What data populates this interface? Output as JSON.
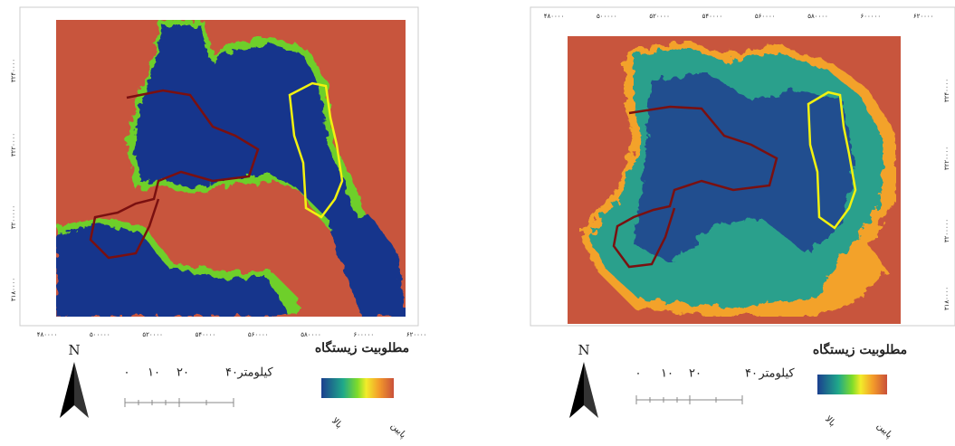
{
  "maps": [
    {
      "x_ticks": [
        "۴۸۰۰۰۰",
        "۵۰۰۰۰۰",
        "۵۲۰۰۰۰",
        "۵۴۰۰۰۰",
        "۵۶۰۰۰۰",
        "۵۸۰۰۰۰",
        "۶۰۰۰۰۰",
        "۶۲۰۰۰۰"
      ],
      "y_ticks": [
        "۳۲۴۰۰۰۰",
        "۳۲۲۰۰۰۰",
        "۳۲۰۰۰۰۰",
        "۳۱۸۰۰۰۰"
      ],
      "north": "N",
      "scale": {
        "labels": [
          "۰",
          "۱۰",
          "۲۰",
          "۴۰"
        ],
        "unit": "کیلومتر"
      },
      "legend": {
        "title": "مطلوبیت زیستگاه",
        "high": "بالا",
        "low": "پایین"
      }
    },
    {
      "x_ticks": [
        "۴۸۰۰۰۰",
        "۵۰۰۰۰۰",
        "۵۲۰۰۰۰",
        "۵۴۰۰۰۰",
        "۵۶۰۰۰۰",
        "۵۸۰۰۰۰",
        "۶۰۰۰۰۰",
        "۶۲۰۰۰۰"
      ],
      "y_ticks": [
        "۳۲۴۰۰۰۰",
        "۳۲۲۰۰۰۰",
        "۳۲۰۰۰۰۰",
        "۳۱۸۰۰۰۰"
      ],
      "north": "N",
      "scale": {
        "labels": [
          "۰",
          "۱۰",
          "۲۰",
          "۴۰"
        ],
        "unit": "کیلومتر"
      },
      "legend": {
        "title": "مطلوبیت زیستگاه",
        "high": "بالا",
        "low": "پایین"
      }
    }
  ]
}
